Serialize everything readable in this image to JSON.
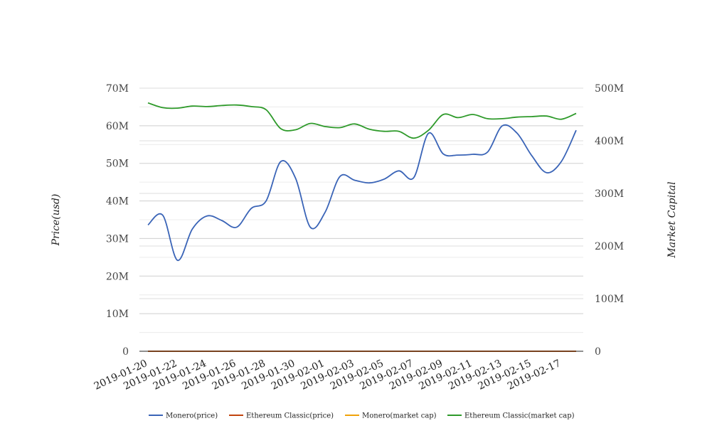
{
  "chart_data": {
    "type": "line",
    "ylabel_left": "Price(usd)",
    "ylabel_right": "Market Capital",
    "ylim_left": [
      0,
      70000000
    ],
    "ylim_right": [
      0,
      500000000
    ],
    "yticks_left": [
      "0",
      "10M",
      "20M",
      "30M",
      "40M",
      "50M",
      "60M",
      "70M"
    ],
    "yticks_right": [
      "0",
      "100M",
      "200M",
      "300M",
      "400M",
      "500M"
    ],
    "x_tick_labels": [
      "2019-01-20",
      "2019-01-22",
      "2019-01-24",
      "2019-01-26",
      "2019-01-28",
      "2019-01-30",
      "2019-02-01",
      "2019-02-03",
      "2019-02-05",
      "2019-02-07",
      "2019-02-09",
      "2019-02-11",
      "2019-02-13",
      "2019-02-15",
      "2019-02-17"
    ],
    "x": [
      "2019-01-20",
      "2019-01-21",
      "2019-01-22",
      "2019-01-23",
      "2019-01-24",
      "2019-01-25",
      "2019-01-26",
      "2019-01-27",
      "2019-01-28",
      "2019-01-29",
      "2019-01-30",
      "2019-01-31",
      "2019-02-01",
      "2019-02-02",
      "2019-02-03",
      "2019-02-04",
      "2019-02-05",
      "2019-02-06",
      "2019-02-07",
      "2019-02-08",
      "2019-02-09",
      "2019-02-10",
      "2019-02-11",
      "2019-02-12",
      "2019-02-13",
      "2019-02-14",
      "2019-02-15",
      "2019-02-16",
      "2019-02-17",
      "2019-02-18"
    ],
    "legend_position": "bottom",
    "series": [
      {
        "name": "Monero(price)",
        "axis": "left",
        "color": "#3a64b7",
        "values": [
          33600000,
          36200000,
          24200000,
          32500000,
          36000000,
          34800000,
          33000000,
          38000000,
          40000000,
          50500000,
          46000000,
          33000000,
          37000000,
          46500000,
          45500000,
          44800000,
          45800000,
          48000000,
          46200000,
          58000000,
          52500000,
          52200000,
          52400000,
          53000000,
          60000000,
          58000000,
          52000000,
          47500000,
          50500000,
          58800000
        ]
      },
      {
        "name": "Ethereum Classic(price)",
        "axis": "left",
        "color": "#c1440e",
        "values": [
          5,
          5,
          5,
          5,
          5,
          5,
          5,
          5,
          5,
          5,
          5,
          5,
          5,
          5,
          5,
          5,
          5,
          5,
          5,
          5,
          5,
          5,
          5,
          5,
          5,
          5,
          5,
          5,
          5,
          5
        ]
      },
      {
        "name": "Monero(market cap)",
        "axis": "right",
        "color": "#f0a30a",
        "values": [
          600,
          600,
          600,
          600,
          600,
          600,
          600,
          600,
          600,
          600,
          600,
          600,
          600,
          600,
          600,
          600,
          600,
          600,
          600,
          600,
          600,
          600,
          600,
          600,
          600,
          600,
          600,
          600,
          600,
          600
        ]
      },
      {
        "name": "Ethereum Classic(market cap)",
        "axis": "right",
        "color": "#2e9a2a",
        "values": [
          472000000,
          463000000,
          462000000,
          466000000,
          465000000,
          467000000,
          468000000,
          465000000,
          459000000,
          423000000,
          421000000,
          433000000,
          427000000,
          425000000,
          432000000,
          422000000,
          418000000,
          418000000,
          405000000,
          420000000,
          450000000,
          444000000,
          450000000,
          442000000,
          442000000,
          445000000,
          446000000,
          447000000,
          441000000,
          452000000
        ]
      }
    ]
  }
}
